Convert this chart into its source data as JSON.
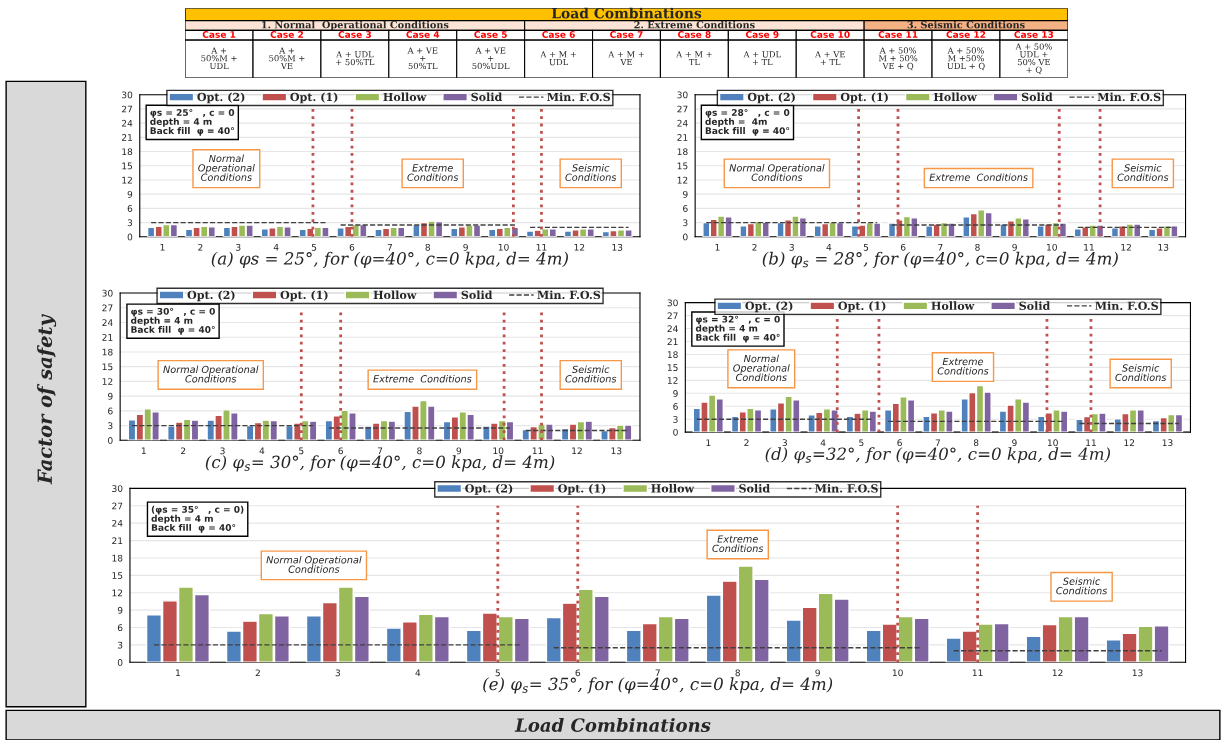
{
  "chart_data": [
    {
      "type": "other",
      "title": "Load Combinations",
      "xlabel": "Load Combinations",
      "ylabel": "Factor of safety",
      "categories": [
        "Case 1",
        "Case 2",
        "Case 3",
        "Case 4",
        "Case 5",
        "Case 6",
        "Case 7",
        "Case 8",
        "Case 9",
        "Case 10",
        "Case 11",
        "Case 12",
        "Case 13"
      ],
      "annotations": [
        "1. Normal  Operational Conditions",
        "2. Extreme Conditions",
        "3. Seismic Conditions",
        "A +\n50%M +\nUDL",
        "A +\n50%M +\nVE",
        "A + UDL\n+ 50%TL",
        "A + VE\n+\n50%TL",
        "A + VE\n+\n50%UDL",
        "A + M +\nUDL",
        "A + M +\nVE",
        "A + M +\nTL",
        "A + UDL\n+ TL",
        "A + VE\n+ TL",
        "A + 50%\nM + 50%\nVE + Q",
        "A + 50%\nM +50%\nUDL + Q",
        "A + 50%\nUDL +\n50% VE\n+ Q"
      ]
    },
    {
      "type": "bar",
      "title": "(a) φs = 25°, for (φ=40°, c=0 kpa, d= 4m)",
      "x": [
        1,
        2,
        3,
        4,
        5,
        6,
        7,
        8,
        9,
        10,
        11,
        12,
        13
      ],
      "xlim": [
        0.4,
        13.6
      ],
      "xticks": [
        1,
        2,
        3,
        4,
        5,
        6,
        7,
        8,
        9,
        10,
        11,
        12,
        13
      ],
      "ylim": [
        0,
        30
      ],
      "yticks": [
        0,
        3,
        6,
        9,
        12,
        15,
        18,
        21,
        24,
        27,
        30
      ],
      "grid": "y",
      "legend": "top",
      "series": [
        {
          "name": "Opt. (2)",
          "color": "#4f81bd",
          "values": [
            2.0,
            1.6,
            2.0,
            1.7,
            1.6,
            1.9,
            1.6,
            2.6,
            1.8,
            1.6,
            1.2,
            1.2,
            1.1
          ]
        },
        {
          "name": "Opt. (1)",
          "color": "#c0504d",
          "values": [
            2.2,
            2.0,
            2.2,
            1.9,
            1.8,
            2.2,
            1.8,
            3.0,
            2.1,
            1.8,
            1.4,
            1.5,
            1.3
          ]
        },
        {
          "name": "Hollow",
          "color": "#9bbb59",
          "values": [
            2.6,
            2.2,
            2.5,
            2.2,
            2.0,
            2.6,
            2.0,
            3.3,
            2.5,
            2.0,
            1.7,
            1.7,
            1.5
          ]
        },
        {
          "name": "Solid",
          "color": "#8064a2",
          "values": [
            2.6,
            2.1,
            2.5,
            2.1,
            2.0,
            2.6,
            2.0,
            3.2,
            2.5,
            2.0,
            1.7,
            1.7,
            1.5
          ]
        },
        {
          "name": "Min. F.O.S",
          "type": "line",
          "color": "#404040",
          "line_style": "dashed",
          "x": [
            0.7,
            5.3,
            5.5,
            5.7,
            10.3,
            10.5,
            10.7,
            13.3
          ],
          "values": [
            3,
            3,
            null,
            2.5,
            2.5,
            null,
            2,
            2
          ]
        }
      ],
      "ref_lines": [
        {
          "axis": "x",
          "value": 4.97,
          "color": "#c0504d",
          "line_style": "dotted"
        },
        {
          "axis": "x",
          "value": 6.0,
          "color": "#c0504d",
          "line_style": "dotted"
        },
        {
          "axis": "x",
          "value": 10.26,
          "color": "#c0504d",
          "line_style": "dotted"
        },
        {
          "axis": "x",
          "value": 11.0,
          "color": "#c0504d",
          "line_style": "dotted"
        }
      ],
      "annotations": [
        "φs = 25°   , c = 0\ndepth = 4 m\nBack fill  φ = 40°",
        "Normal\nOperational\nConditions",
        "Extreme\nConditions",
        "Seismic\nConditions"
      ]
    },
    {
      "type": "bar",
      "title": "(b) φ$_{s}$ = 28°, for (φ=40°, c=0 kpa, d= 4m)",
      "x": [
        1,
        2,
        3,
        4,
        5,
        6,
        7,
        8,
        9,
        10,
        11,
        12,
        13
      ],
      "xlim": [
        0.4,
        13.6
      ],
      "xticks": [
        1,
        2,
        3,
        4,
        5,
        6,
        7,
        8,
        9,
        10,
        11,
        12,
        13
      ],
      "ylim": [
        0,
        30
      ],
      "yticks": [
        0,
        3,
        6,
        9,
        12,
        15,
        18,
        21,
        24,
        27,
        30
      ],
      "grid": "y",
      "legend": "top",
      "series": [
        {
          "name": "Opt. (2)",
          "color": "#4f81bd",
          "values": [
            3.0,
            2.3,
            3.0,
            2.3,
            2.3,
            2.9,
            2.3,
            4.2,
            2.7,
            2.3,
            1.7,
            1.9,
            1.6
          ]
        },
        {
          "name": "Opt. (1)",
          "color": "#c0504d",
          "values": [
            3.7,
            2.8,
            3.6,
            2.8,
            2.5,
            3.6,
            2.7,
            4.9,
            3.4,
            2.7,
            2.1,
            2.3,
            1.9
          ]
        },
        {
          "name": "Hollow",
          "color": "#9bbb59",
          "values": [
            4.4,
            3.2,
            4.4,
            3.1,
            3.0,
            4.3,
            3.0,
            5.7,
            4.0,
            3.0,
            2.5,
            2.7,
            2.3
          ]
        },
        {
          "name": "Solid",
          "color": "#8064a2",
          "values": [
            4.2,
            3.1,
            4.0,
            3.0,
            2.9,
            4.0,
            2.9,
            5.1,
            3.8,
            2.9,
            2.5,
            2.7,
            2.3
          ]
        },
        {
          "name": "Min. F.O.S",
          "type": "line",
          "color": "#404040",
          "line_style": "dashed",
          "x": [
            0.7,
            5.3,
            5.5,
            5.7,
            10.3,
            10.5,
            10.7,
            13.3
          ],
          "values": [
            3,
            3,
            null,
            2.5,
            2.5,
            null,
            2,
            2
          ]
        }
      ],
      "ref_lines": [
        {
          "axis": "x",
          "value": 4.8,
          "color": "#c0504d",
          "line_style": "dotted"
        },
        {
          "axis": "x",
          "value": 5.86,
          "color": "#c0504d",
          "line_style": "dotted"
        },
        {
          "axis": "x",
          "value": 10.2,
          "color": "#c0504d",
          "line_style": "dotted"
        },
        {
          "axis": "x",
          "value": 11.3,
          "color": "#c0504d",
          "line_style": "dotted"
        }
      ],
      "annotations": [
        "φs = 28°   , c = 0\ndepth =  4m\nBack fill  φ = 40°",
        "Normal Operational\nConditions",
        "Extreme  Conditions",
        "Seismic\nConditions"
      ]
    },
    {
      "type": "bar",
      "title": "(c) φ$_{s}$= 30°, for (φ=40°, c=0 kpa, d= 4m)",
      "x": [
        1,
        2,
        3,
        4,
        5,
        6,
        7,
        8,
        9,
        10,
        11,
        12,
        13
      ],
      "xlim": [
        0.4,
        13.6
      ],
      "xticks": [
        1,
        2,
        3,
        4,
        5,
        6,
        7,
        8,
        9,
        10,
        11,
        12,
        13
      ],
      "ylim": [
        0,
        30
      ],
      "yticks": [
        0,
        3,
        6,
        9,
        12,
        15,
        18,
        21,
        24,
        27,
        30
      ],
      "grid": "y",
      "legend": "top",
      "series": [
        {
          "name": "Opt. (2)",
          "color": "#4f81bd",
          "values": [
            4.2,
            2.9,
            4.1,
            3.0,
            3.0,
            4.0,
            2.9,
            5.9,
            3.8,
            2.9,
            2.2,
            2.4,
            2.0
          ]
        },
        {
          "name": "Opt. (1)",
          "color": "#c0504d",
          "values": [
            5.3,
            3.7,
            5.1,
            3.6,
            3.5,
            5.0,
            3.5,
            7.0,
            4.8,
            3.5,
            2.8,
            3.3,
            2.6
          ]
        },
        {
          "name": "Hollow",
          "color": "#9bbb59",
          "values": [
            6.4,
            4.3,
            6.2,
            4.1,
            4.0,
            6.1,
            4.0,
            8.1,
            5.8,
            4.0,
            3.3,
            3.8,
            3.1
          ]
        },
        {
          "name": "Solid",
          "color": "#8064a2",
          "values": [
            5.8,
            4.1,
            5.6,
            4.0,
            3.9,
            5.6,
            3.9,
            7.0,
            5.3,
            3.8,
            3.3,
            3.9,
            3.1
          ]
        },
        {
          "name": "Min. F.O.S",
          "type": "line",
          "color": "#404040",
          "line_style": "dashed",
          "x": [
            0.7,
            5.3,
            5.5,
            5.7,
            10.3,
            10.5,
            10.7,
            13.3
          ],
          "values": [
            3,
            3,
            null,
            2.5,
            2.5,
            null,
            2,
            2
          ]
        }
      ],
      "ref_lines": [
        {
          "axis": "x",
          "value": 5.0,
          "color": "#c0504d",
          "line_style": "dotted"
        },
        {
          "axis": "x",
          "value": 6.0,
          "color": "#c0504d",
          "line_style": "dotted"
        },
        {
          "axis": "x",
          "value": 10.15,
          "color": "#c0504d",
          "line_style": "dotted"
        },
        {
          "axis": "x",
          "value": 11.1,
          "color": "#c0504d",
          "line_style": "dotted"
        }
      ],
      "annotations": [
        "φs = 30°   , c = 0\ndepth = 4 m\nBack fill  φ = 40°",
        "Normal Operational\nConditions",
        "Extreme  Conditions",
        "Seismic\nConditions"
      ]
    },
    {
      "type": "bar",
      "title": "(d) φ$_{s}$=32°, for (φ=40°, c=0 kpa, d= 4m)",
      "x": [
        1,
        2,
        3,
        4,
        5,
        6,
        7,
        8,
        9,
        10,
        11,
        12,
        13
      ],
      "xlim": [
        0.4,
        13.6
      ],
      "xticks": [
        1,
        2,
        3,
        4,
        5,
        6,
        7,
        8,
        9,
        10,
        11,
        12,
        13
      ],
      "ylim": [
        0,
        30
      ],
      "yticks": [
        0,
        3,
        6,
        9,
        12,
        15,
        18,
        21,
        24,
        27,
        30
      ],
      "grid": "y",
      "legend": "top",
      "series": [
        {
          "name": "Opt. (2)",
          "color": "#4f81bd",
          "values": [
            5.5,
            3.7,
            5.4,
            4.0,
            3.7,
            5.2,
            3.7,
            7.7,
            4.9,
            3.7,
            3.0,
            3.1,
            2.7
          ]
        },
        {
          "name": "Opt. (1)",
          "color": "#c0504d",
          "values": [
            7.0,
            4.7,
            6.8,
            4.6,
            4.4,
            6.7,
            4.5,
            9.2,
            6.3,
            4.5,
            3.6,
            4.3,
            3.4
          ]
        },
        {
          "name": "Hollow",
          "color": "#9bbb59",
          "values": [
            8.6,
            5.5,
            8.3,
            5.4,
            5.2,
            8.2,
            5.2,
            10.8,
            7.7,
            5.2,
            4.3,
            5.2,
            4.1
          ]
        },
        {
          "name": "Solid",
          "color": "#8064a2",
          "values": [
            7.7,
            5.2,
            7.5,
            5.2,
            4.9,
            7.5,
            4.9,
            9.3,
            7.0,
            4.9,
            4.4,
            5.2,
            4.1
          ]
        },
        {
          "name": "Min. F.O.S",
          "type": "line",
          "color": "#404040",
          "line_style": "dashed",
          "x": [
            0.7,
            5.3,
            5.5,
            5.7,
            10.3,
            10.5,
            10.7,
            13.3
          ],
          "values": [
            3,
            3,
            null,
            2.5,
            2.5,
            null,
            2,
            2
          ]
        }
      ],
      "ref_lines": [
        {
          "axis": "x",
          "value": 4.37,
          "color": "#c0504d",
          "line_style": "dotted"
        },
        {
          "axis": "x",
          "value": 5.46,
          "color": "#c0504d",
          "line_style": "dotted"
        },
        {
          "axis": "x",
          "value": 9.85,
          "color": "#c0504d",
          "line_style": "dotted"
        },
        {
          "axis": "x",
          "value": 11.0,
          "color": "#c0504d",
          "line_style": "dotted"
        }
      ],
      "annotations": [
        "φs = 32°   , c = 0\ndepth = 4 m\nBack fill  φ = 40°",
        "Normal\nOperational\nConditions",
        "Extreme\nConditions",
        "Seismic\nConditions"
      ]
    },
    {
      "type": "bar",
      "title": "(e) φ$_{s}$= 35°, for (φ=40°, c=0 kpa, d= 4m)",
      "x": [
        1,
        2,
        3,
        4,
        5,
        6,
        7,
        8,
        9,
        10,
        11,
        12,
        13
      ],
      "xlim": [
        0.4,
        13.6
      ],
      "xticks": [
        1,
        2,
        3,
        4,
        5,
        6,
        7,
        8,
        9,
        10,
        11,
        12,
        13
      ],
      "ylim": [
        0,
        30
      ],
      "yticks": [
        0,
        3,
        6,
        9,
        12,
        15,
        18,
        21,
        24,
        27,
        30
      ],
      "grid": "y",
      "legend": "top",
      "series": [
        {
          "name": "Opt. (2)",
          "color": "#4f81bd",
          "values": [
            8.2,
            5.4,
            8.0,
            5.9,
            5.5,
            7.7,
            5.5,
            11.6,
            7.3,
            5.5,
            4.2,
            4.5,
            3.9
          ]
        },
        {
          "name": "Opt. (1)",
          "color": "#c0504d",
          "values": [
            10.6,
            7.1,
            10.3,
            7.0,
            8.5,
            10.2,
            6.7,
            14.0,
            9.5,
            6.6,
            5.4,
            6.5,
            5.0
          ]
        },
        {
          "name": "Hollow",
          "color": "#9bbb59",
          "values": [
            13.0,
            8.4,
            13.0,
            8.3,
            7.9,
            12.6,
            7.9,
            16.6,
            11.9,
            7.9,
            6.6,
            7.9,
            6.2
          ]
        },
        {
          "name": "Solid",
          "color": "#8064a2",
          "values": [
            11.7,
            8.0,
            11.4,
            7.9,
            7.6,
            11.4,
            7.6,
            14.3,
            10.9,
            7.6,
            6.7,
            7.9,
            6.3
          ]
        },
        {
          "name": "Min. F.O.S",
          "type": "line",
          "color": "#404040",
          "line_style": "dashed",
          "x": [
            0.7,
            5.3,
            5.5,
            5.7,
            10.3,
            10.5,
            10.7,
            13.3
          ],
          "values": [
            3,
            3,
            null,
            2.5,
            2.5,
            null,
            2,
            2
          ]
        }
      ],
      "ref_lines": [
        {
          "axis": "x",
          "value": 5.0,
          "color": "#c0504d",
          "line_style": "dotted"
        },
        {
          "axis": "x",
          "value": 6.0,
          "color": "#c0504d",
          "line_style": "dotted"
        },
        {
          "axis": "x",
          "value": 10.0,
          "color": "#c0504d",
          "line_style": "dotted"
        },
        {
          "axis": "x",
          "value": 11.0,
          "color": "#c0504d",
          "line_style": "dotted"
        }
      ],
      "annotations": [
        "(φs = 35°   , c = 0)\ndepth = 4 m\nBack fill  φ = 40°",
        "Normal Operational\nConditions",
        "Extreme\nConditions",
        "Seismic\nConditions"
      ]
    }
  ]
}
